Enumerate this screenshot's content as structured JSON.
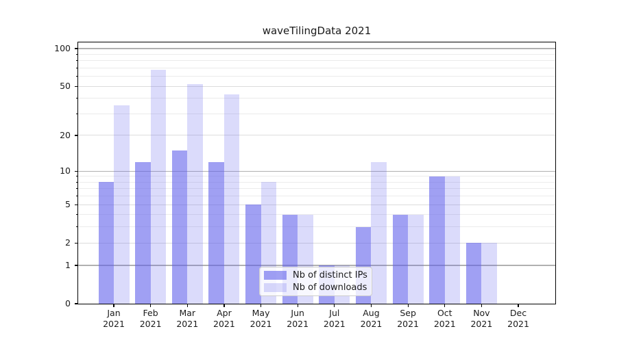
{
  "chart_data": {
    "type": "bar",
    "title": "waveTilingData 2021",
    "categories": [
      "Jan 2021",
      "Feb 2021",
      "Mar 2021",
      "Apr 2021",
      "May 2021",
      "Jun 2021",
      "Jul 2021",
      "Aug 2021",
      "Sep 2021",
      "Oct 2021",
      "Nov 2021",
      "Dec 2021"
    ],
    "series": [
      {
        "name": "Nb of distinct IPs",
        "base_color": "#5c5ceb",
        "alpha": 0.58,
        "values": [
          8,
          12,
          15,
          12,
          5,
          4,
          1,
          3,
          4,
          9,
          2,
          0
        ]
      },
      {
        "name": "Nb of downloads",
        "base_color": "#5c5ceb",
        "alpha": 0.22,
        "values": [
          35,
          68,
          52,
          43,
          8,
          4,
          1,
          12,
          4,
          9,
          2,
          0
        ]
      }
    ],
    "yscale": "log1p",
    "ylim": [
      0,
      111
    ],
    "yticks": [
      0,
      1,
      2,
      5,
      10,
      20,
      50,
      100
    ],
    "yticks_strong": [
      1,
      10,
      100
    ],
    "minor_yticks": [
      3,
      4,
      6,
      7,
      8,
      9,
      30,
      40,
      60,
      70,
      80,
      90
    ],
    "grid": true,
    "legend": {
      "position": "lower-center",
      "labels": [
        "Nb of distinct IPs",
        "Nb of downloads"
      ]
    }
  },
  "colors": {
    "background": "#ffffff",
    "bar_base": "#5c5ceb",
    "grid_strong": "#b0b0b0",
    "grid_major": "#dcdcdc",
    "grid_minor": "#ebebeb",
    "spine": "#000000",
    "text": "#1a1a1a",
    "legend_border": "#cccccc",
    "legend_bg": "rgba(255,255,255,0.8)"
  }
}
